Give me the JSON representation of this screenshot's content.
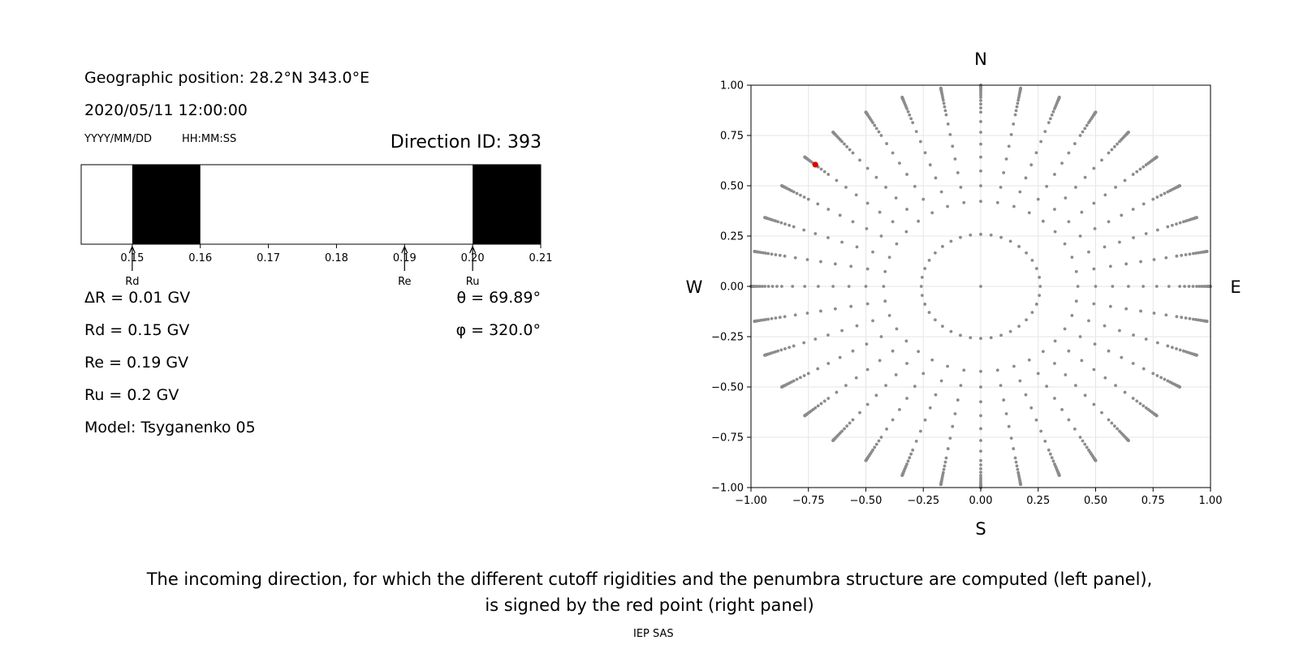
{
  "left_panel": {
    "position_label": "Geographic position: 28.2°N 343.0°E",
    "datetime": "2020/05/11 12:00:00",
    "date_format": "YYYY/MM/DD",
    "time_format": "HH:MM:SS",
    "direction_id": "Direction ID: 393",
    "params": {
      "delta_r": "ΔR = 0.01 GV",
      "rd": "Rd = 0.15 GV",
      "re": "Re = 0.19 GV",
      "ru": "Ru = 0.2 GV",
      "model": "Model: Tsyganenko 05",
      "theta": "θ = 69.89°",
      "phi": "φ = 320.0°"
    }
  },
  "chart_data": [
    {
      "type": "penumbra-bar",
      "xlim": [
        0.1425,
        0.21
      ],
      "ticks": [
        0.15,
        0.16,
        0.17,
        0.18,
        0.19,
        0.2,
        0.21
      ],
      "tick_labels": [
        "0.15",
        "0.16",
        "0.17",
        "0.18",
        "0.19",
        "0.20",
        "0.21"
      ],
      "forbidden_bands": [
        [
          0.15,
          0.16
        ],
        [
          0.2,
          0.21
        ]
      ],
      "markers": [
        {
          "label": "Rd",
          "value": 0.15
        },
        {
          "label": "Re",
          "value": 0.19
        },
        {
          "label": "Ru",
          "value": 0.2
        }
      ]
    },
    {
      "type": "scatter",
      "title": "",
      "xlim": [
        -1.0,
        1.0
      ],
      "ylim": [
        -1.0,
        1.0
      ],
      "xticks": [
        -1.0,
        -0.75,
        -0.5,
        -0.25,
        0.0,
        0.25,
        0.5,
        0.75,
        1.0
      ],
      "yticks": [
        -1.0,
        -0.75,
        -0.5,
        -0.25,
        0.0,
        0.25,
        0.5,
        0.75,
        1.0
      ],
      "xtick_labels": [
        "−1.00",
        "−0.75",
        "−0.50",
        "−0.25",
        "0.00",
        "0.25",
        "0.50",
        "0.75",
        "1.00"
      ],
      "ytick_labels": [
        "−1.00",
        "−0.75",
        "−0.50",
        "−0.25",
        "0.00",
        "0.25",
        "0.50",
        "0.75",
        "1.00"
      ],
      "grid": true,
      "compass": {
        "north": "N",
        "south": "S",
        "west": "W",
        "east": "E"
      },
      "grid_series": {
        "name": "directions",
        "color": "#8c8c8c",
        "zenith_rings_deg": [
          15,
          25,
          30,
          35,
          40,
          45,
          50,
          55,
          60,
          62.5,
          65,
          67.5,
          70,
          72,
          74,
          76,
          78,
          80,
          81,
          82,
          83,
          84,
          85,
          86,
          87,
          88,
          89,
          90
        ],
        "azimuth_step_deg": 10,
        "includes_center": true
      },
      "highlight": {
        "name": "selected direction",
        "x": -0.72,
        "y": 0.605,
        "color": "#e00000"
      }
    }
  ],
  "caption": {
    "line1": "The incoming direction, for which the different cutoff rigidities and the penumbra structure are computed (left panel),",
    "line2": "is signed by the red point (right panel)"
  },
  "credit": "IEP SAS"
}
